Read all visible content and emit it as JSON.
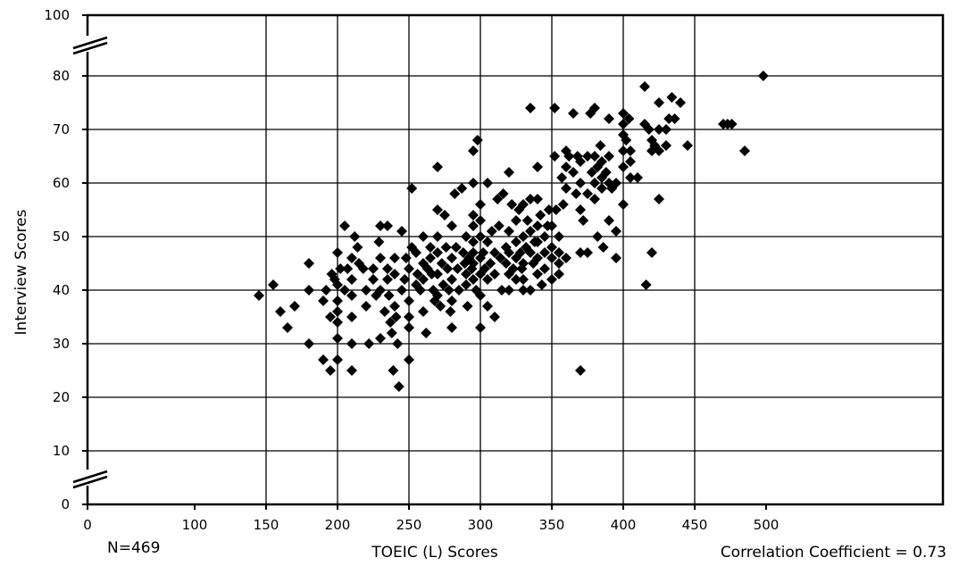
{
  "chart_data": {
    "type": "scatter",
    "xlabel": "TOEIC (L) Scores",
    "ylabel": "Interview Scores",
    "xlim": [
      0,
      500
    ],
    "ylim": [
      0,
      100
    ],
    "x_ticks": [
      "0",
      "100",
      "150",
      "200",
      "250",
      "300",
      "350",
      "400",
      "450",
      "500"
    ],
    "y_ticks": [
      "0",
      "10",
      "20",
      "30",
      "40",
      "50",
      "60",
      "70",
      "80",
      "100"
    ],
    "grid": true,
    "axis_breaks": true,
    "marker_color": "#000000",
    "sample_label": "N=469",
    "correlation_label": "Correlation Coefficient = 0.73",
    "points": [
      [
        145,
        39
      ],
      [
        155,
        41
      ],
      [
        160,
        36
      ],
      [
        165,
        33
      ],
      [
        170,
        37
      ],
      [
        180,
        45
      ],
      [
        180,
        40
      ],
      [
        180,
        30
      ],
      [
        190,
        27
      ],
      [
        190,
        38
      ],
      [
        192,
        40
      ],
      [
        195,
        35
      ],
      [
        195,
        25
      ],
      [
        196,
        43
      ],
      [
        198,
        42
      ],
      [
        200,
        41
      ],
      [
        200,
        38
      ],
      [
        200,
        36
      ],
      [
        200,
        34
      ],
      [
        200,
        31
      ],
      [
        200,
        27
      ],
      [
        200,
        47
      ],
      [
        202,
        44
      ],
      [
        205,
        40
      ],
      [
        205,
        52
      ],
      [
        207,
        44
      ],
      [
        210,
        46
      ],
      [
        210,
        42
      ],
      [
        210,
        39
      ],
      [
        210,
        35
      ],
      [
        210,
        30
      ],
      [
        210,
        25
      ],
      [
        212,
        50
      ],
      [
        214,
        48
      ],
      [
        215,
        45
      ],
      [
        218,
        44
      ],
      [
        220,
        40
      ],
      [
        220,
        37
      ],
      [
        222,
        30
      ],
      [
        225,
        44
      ],
      [
        225,
        42
      ],
      [
        227,
        39
      ],
      [
        229,
        49
      ],
      [
        230,
        52
      ],
      [
        230,
        46
      ],
      [
        230,
        40
      ],
      [
        230,
        31
      ],
      [
        233,
        36
      ],
      [
        235,
        52
      ],
      [
        235,
        44
      ],
      [
        235,
        42
      ],
      [
        236,
        39
      ],
      [
        237,
        34
      ],
      [
        238,
        32
      ],
      [
        239,
        25
      ],
      [
        240,
        46
      ],
      [
        240,
        43
      ],
      [
        240,
        37
      ],
      [
        241,
        35
      ],
      [
        242,
        30
      ],
      [
        243,
        22
      ],
      [
        245,
        51
      ],
      [
        245,
        40
      ],
      [
        247,
        42
      ],
      [
        248,
        46
      ],
      [
        250,
        44
      ],
      [
        250,
        38
      ],
      [
        250,
        35
      ],
      [
        250,
        33
      ],
      [
        250,
        27
      ],
      [
        252,
        48
      ],
      [
        252,
        59
      ],
      [
        255,
        41
      ],
      [
        255,
        47
      ],
      [
        256,
        43
      ],
      [
        258,
        40
      ],
      [
        260,
        50
      ],
      [
        260,
        45
      ],
      [
        260,
        42
      ],
      [
        260,
        36
      ],
      [
        262,
        32
      ],
      [
        263,
        44
      ],
      [
        265,
        48
      ],
      [
        265,
        46
      ],
      [
        266,
        43
      ],
      [
        267,
        40
      ],
      [
        268,
        38
      ],
      [
        270,
        63
      ],
      [
        270,
        55
      ],
      [
        270,
        50
      ],
      [
        270,
        47
      ],
      [
        270,
        43
      ],
      [
        270,
        39
      ],
      [
        272,
        37
      ],
      [
        273,
        45
      ],
      [
        274,
        41
      ],
      [
        275,
        54
      ],
      [
        276,
        48
      ],
      [
        277,
        44
      ],
      [
        278,
        40
      ],
      [
        279,
        36
      ],
      [
        280,
        52
      ],
      [
        280,
        46
      ],
      [
        280,
        42
      ],
      [
        280,
        38
      ],
      [
        280,
        33
      ],
      [
        282,
        58
      ],
      [
        283,
        48
      ],
      [
        284,
        44
      ],
      [
        285,
        40
      ],
      [
        287,
        59
      ],
      [
        288,
        47
      ],
      [
        289,
        45
      ],
      [
        290,
        50
      ],
      [
        290,
        43
      ],
      [
        290,
        41
      ],
      [
        291,
        37
      ],
      [
        292,
        46
      ],
      [
        294,
        44
      ],
      [
        295,
        66
      ],
      [
        295,
        60
      ],
      [
        295,
        54
      ],
      [
        295,
        52
      ],
      [
        295,
        49
      ],
      [
        295,
        47
      ],
      [
        295,
        45
      ],
      [
        295,
        42
      ],
      [
        297,
        40
      ],
      [
        298,
        68
      ],
      [
        300,
        33
      ],
      [
        300,
        39
      ],
      [
        300,
        43
      ],
      [
        300,
        46
      ],
      [
        300,
        50
      ],
      [
        300,
        53
      ],
      [
        300,
        56
      ],
      [
        302,
        47
      ],
      [
        303,
        44
      ],
      [
        305,
        60
      ],
      [
        305,
        49
      ],
      [
        305,
        42
      ],
      [
        305,
        37
      ],
      [
        307,
        45
      ],
      [
        308,
        51
      ],
      [
        310,
        47
      ],
      [
        310,
        43
      ],
      [
        310,
        35
      ],
      [
        312,
        57
      ],
      [
        313,
        52
      ],
      [
        314,
        46
      ],
      [
        315,
        40
      ],
      [
        316,
        58
      ],
      [
        318,
        45
      ],
      [
        318,
        48
      ],
      [
        320,
        62
      ],
      [
        320,
        51
      ],
      [
        320,
        47
      ],
      [
        320,
        43
      ],
      [
        320,
        40
      ],
      [
        322,
        56
      ],
      [
        323,
        44
      ],
      [
        325,
        53
      ],
      [
        325,
        49
      ],
      [
        325,
        46
      ],
      [
        325,
        42
      ],
      [
        327,
        55
      ],
      [
        328,
        47
      ],
      [
        329,
        44
      ],
      [
        330,
        56
      ],
      [
        330,
        50
      ],
      [
        330,
        45
      ],
      [
        330,
        42
      ],
      [
        330,
        40
      ],
      [
        332,
        48
      ],
      [
        333,
        53
      ],
      [
        335,
        74
      ],
      [
        335,
        57
      ],
      [
        335,
        51
      ],
      [
        335,
        47
      ],
      [
        335,
        40
      ],
      [
        337,
        45
      ],
      [
        338,
        49
      ],
      [
        340,
        63
      ],
      [
        340,
        57
      ],
      [
        340,
        52
      ],
      [
        340,
        49
      ],
      [
        340,
        46
      ],
      [
        340,
        43
      ],
      [
        342,
        54
      ],
      [
        343,
        41
      ],
      [
        345,
        50
      ],
      [
        345,
        47
      ],
      [
        345,
        44
      ],
      [
        347,
        52
      ],
      [
        348,
        55
      ],
      [
        350,
        52
      ],
      [
        350,
        48
      ],
      [
        350,
        46
      ],
      [
        350,
        42
      ],
      [
        352,
        74
      ],
      [
        352,
        65
      ],
      [
        353,
        55
      ],
      [
        355,
        50
      ],
      [
        355,
        47
      ],
      [
        355,
        45
      ],
      [
        355,
        43
      ],
      [
        357,
        61
      ],
      [
        358,
        56
      ],
      [
        360,
        66
      ],
      [
        360,
        63
      ],
      [
        360,
        59
      ],
      [
        360,
        46
      ],
      [
        362,
        65
      ],
      [
        365,
        73
      ],
      [
        365,
        62
      ],
      [
        367,
        58
      ],
      [
        368,
        65
      ],
      [
        370,
        64
      ],
      [
        370,
        60
      ],
      [
        370,
        55
      ],
      [
        370,
        47
      ],
      [
        370,
        25
      ],
      [
        372,
        53
      ],
      [
        375,
        65
      ],
      [
        375,
        58
      ],
      [
        375,
        47
      ],
      [
        377,
        73
      ],
      [
        378,
        62
      ],
      [
        380,
        74
      ],
      [
        380,
        65
      ],
      [
        380,
        60
      ],
      [
        380,
        57
      ],
      [
        382,
        50
      ],
      [
        382,
        63
      ],
      [
        384,
        67
      ],
      [
        385,
        64
      ],
      [
        385,
        61
      ],
      [
        385,
        59
      ],
      [
        386,
        48
      ],
      [
        388,
        62
      ],
      [
        390,
        72
      ],
      [
        390,
        65
      ],
      [
        390,
        60
      ],
      [
        390,
        53
      ],
      [
        392,
        59
      ],
      [
        395,
        60
      ],
      [
        395,
        51
      ],
      [
        395,
        46
      ],
      [
        400,
        73
      ],
      [
        400,
        71
      ],
      [
        400,
        69
      ],
      [
        400,
        66
      ],
      [
        400,
        63
      ],
      [
        400,
        56
      ],
      [
        402,
        68
      ],
      [
        404,
        72
      ],
      [
        405,
        66
      ],
      [
        405,
        64
      ],
      [
        405,
        61
      ],
      [
        410,
        61
      ],
      [
        415,
        78
      ],
      [
        415,
        71
      ],
      [
        416,
        41
      ],
      [
        418,
        70
      ],
      [
        420,
        68
      ],
      [
        420,
        66
      ],
      [
        420,
        47
      ],
      [
        422,
        67
      ],
      [
        425,
        75
      ],
      [
        425,
        70
      ],
      [
        425,
        66
      ],
      [
        425,
        57
      ],
      [
        430,
        70
      ],
      [
        430,
        67
      ],
      [
        432,
        72
      ],
      [
        434,
        76
      ],
      [
        436,
        72
      ],
      [
        440,
        75
      ],
      [
        445,
        67
      ],
      [
        470,
        71
      ],
      [
        473,
        71
      ],
      [
        476,
        71
      ],
      [
        485,
        66
      ],
      [
        498,
        80
      ]
    ]
  }
}
